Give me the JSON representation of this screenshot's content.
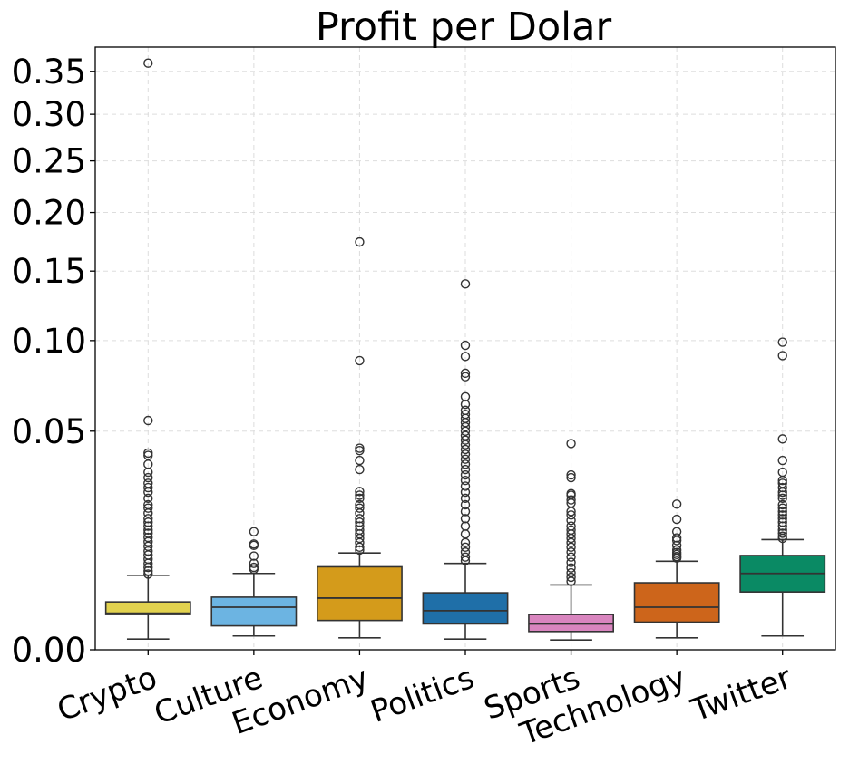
{
  "chart_data": {
    "type": "box",
    "title": "Profit per Dolar",
    "xlabel": "",
    "ylabel": "",
    "y_scale": "sqrt",
    "ylim": [
      0,
      0.38
    ],
    "yticks": [
      0.0,
      0.05,
      0.1,
      0.15,
      0.2,
      0.25,
      0.3,
      0.35
    ],
    "ytick_labels": [
      "0.00",
      "0.05",
      "0.10",
      "0.15",
      "0.20",
      "0.25",
      "0.30",
      "0.35"
    ],
    "grid": true,
    "categories": [
      "Crypto",
      "Culture",
      "Economy",
      "Politics",
      "Sports",
      "Technology",
      "Twitter"
    ],
    "boxes": [
      {
        "name": "Crypto",
        "color": "#e2d24f",
        "whisker_low": 0.00012,
        "q1": 0.0013,
        "median": 0.0014,
        "q3": 0.0024,
        "whisker_high": 0.0058,
        "outliers": [
          0.36,
          0.055,
          0.0405,
          0.0395,
          0.036,
          0.033,
          0.031,
          0.029,
          0.0275,
          0.026,
          0.024,
          0.022,
          0.021,
          0.0195,
          0.018,
          0.017,
          0.016,
          0.015,
          0.0142,
          0.0132,
          0.0122,
          0.0112,
          0.0102,
          0.0094,
          0.0086,
          0.0078,
          0.0071,
          0.0065,
          0.006
        ]
      },
      {
        "name": "Culture",
        "color": "#6cb4e2",
        "whisker_low": 0.0002,
        "q1": 0.0006,
        "median": 0.0019,
        "q3": 0.0029,
        "whisker_high": 0.0061,
        "outliers": [
          0.0146,
          0.0117,
          0.0114,
          0.0092,
          0.0078,
          0.0071,
          0.0068
        ]
      },
      {
        "name": "Economy",
        "color": "#d49b1b",
        "whisker_low": 0.00015,
        "q1": 0.0009,
        "median": 0.0028,
        "q3": 0.0072,
        "whisker_high": 0.0098,
        "outliers": [
          0.174,
          0.0875,
          0.0425,
          0.0415,
          0.0375,
          0.034,
          0.0262,
          0.025,
          0.024,
          0.022,
          0.021,
          0.0195,
          0.018,
          0.017,
          0.016,
          0.015,
          0.014,
          0.013,
          0.012,
          0.011,
          0.0104
        ]
      },
      {
        "name": "Politics",
        "color": "#1f6fa8",
        "whisker_low": 0.00012,
        "q1": 0.0007,
        "median": 0.0016,
        "q3": 0.0034,
        "whisker_high": 0.0078,
        "outliers": [
          0.14,
          0.097,
          0.09,
          0.08,
          0.078,
          0.067,
          0.063,
          0.06,
          0.058,
          0.056,
          0.054,
          0.052,
          0.05,
          0.048,
          0.046,
          0.044,
          0.042,
          0.04,
          0.038,
          0.036,
          0.034,
          0.032,
          0.03,
          0.028,
          0.026,
          0.024,
          0.022,
          0.02,
          0.018,
          0.016,
          0.014,
          0.012,
          0.011,
          0.01,
          0.009,
          0.0083
        ]
      },
      {
        "name": "Sports",
        "color": "#d985bf",
        "whisker_low": 0.0001,
        "q1": 0.00035,
        "median": 0.0007,
        "q3": 0.0013,
        "whisker_high": 0.0044,
        "outliers": [
          0.0445,
          0.032,
          0.031,
          0.0255,
          0.025,
          0.0235,
          0.0225,
          0.02,
          0.019,
          0.0175,
          0.016,
          0.015,
          0.014,
          0.013,
          0.012,
          0.011,
          0.01,
          0.009,
          0.008,
          0.007,
          0.0062,
          0.0055,
          0.0049
        ]
      },
      {
        "name": "Technology",
        "color": "#cd651b",
        "whisker_low": 0.00015,
        "q1": 0.0008,
        "median": 0.0019,
        "q3": 0.0047,
        "whisker_high": 0.0082,
        "outliers": [
          0.0222,
          0.0178,
          0.0146,
          0.0131,
          0.0125,
          0.0114,
          0.0104,
          0.0099,
          0.0095,
          0.0091,
          0.0088
        ]
      },
      {
        "name": "Twitter",
        "color": "#0a8a64",
        "whisker_low": 0.0002,
        "q1": 0.0035,
        "median": 0.0061,
        "q3": 0.0093,
        "whisker_high": 0.0127,
        "outliers": [
          0.099,
          0.0905,
          0.0465,
          0.0375,
          0.033,
          0.03,
          0.029,
          0.0275,
          0.026,
          0.025,
          0.024,
          0.022,
          0.021,
          0.02,
          0.019,
          0.018,
          0.017,
          0.016,
          0.015,
          0.0142,
          0.0135,
          0.013
        ]
      }
    ]
  }
}
